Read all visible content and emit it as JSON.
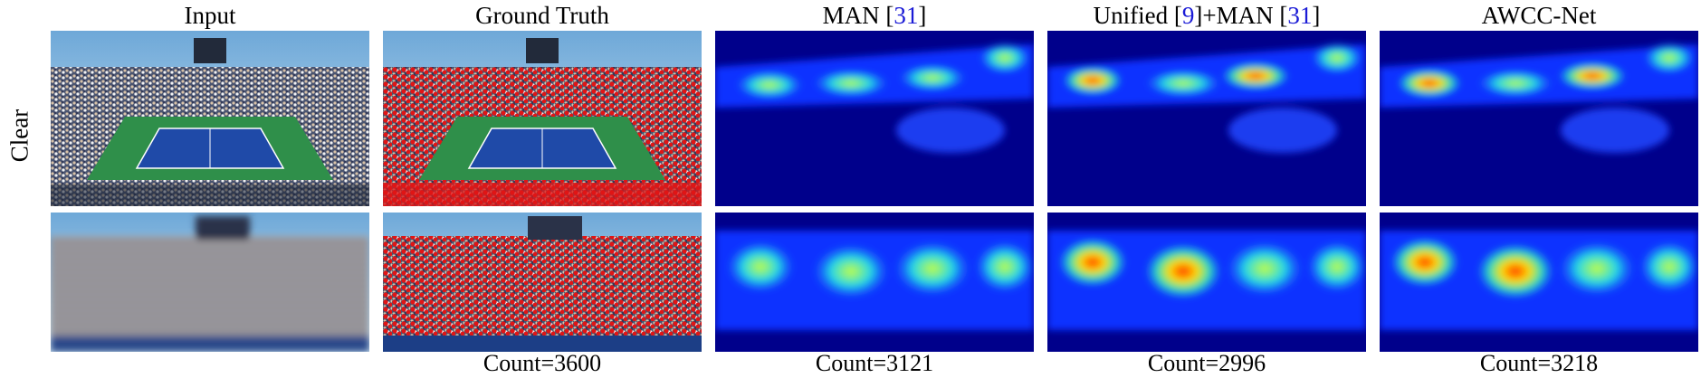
{
  "columns": [
    {
      "key": "input",
      "title": "Input"
    },
    {
      "key": "ground_truth",
      "title": "Ground Truth"
    },
    {
      "key": "man",
      "title_main": "MAN",
      "title_ref": "31"
    },
    {
      "key": "unified_man",
      "title_pre": "Unified",
      "title_ref1": "9",
      "title_mid": "+MAN",
      "title_ref2": "31"
    },
    {
      "key": "awcc",
      "title": "AWCC-Net"
    }
  ],
  "row_label": "Clear",
  "counts": {
    "ground_truth": "Count=3600",
    "man": "Count=3121",
    "unified_man": "Count=2996",
    "awcc": "Count=3218"
  },
  "colors": {
    "heatmap_background": "#00008b",
    "court_green": "#2f8f4a",
    "court_blue": "#1f4aa8",
    "gt_dot": "#e01515"
  }
}
